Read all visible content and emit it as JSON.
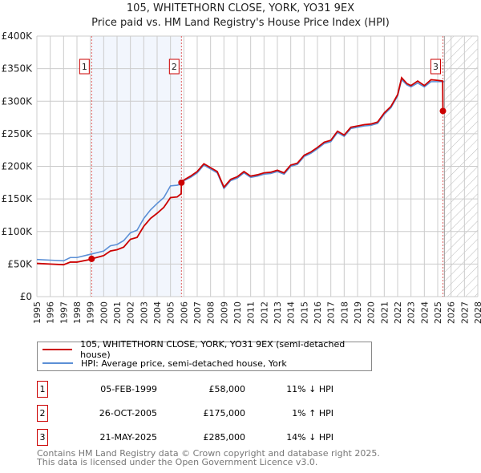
{
  "title": "105, WHITETHORN CLOSE, YORK, YO31 9EX",
  "subtitle": "Price paid vs. HM Land Registry's House Price Index (HPI)",
  "chart_data": {
    "type": "line",
    "title": "105, WHITETHORN CLOSE, YORK, YO31 9EX",
    "subtitle": "Price paid vs. HM Land Registry's House Price Index (HPI)",
    "xlim": [
      1995,
      2028
    ],
    "ylim": [
      0,
      400000
    ],
    "x_ticks": [
      "1995",
      "1996",
      "1997",
      "1998",
      "1999",
      "2000",
      "2001",
      "2002",
      "2003",
      "2004",
      "2005",
      "2006",
      "2007",
      "2008",
      "2009",
      "2010",
      "2011",
      "2012",
      "2013",
      "2014",
      "2015",
      "2016",
      "2017",
      "2018",
      "2019",
      "2020",
      "2021",
      "2022",
      "2023",
      "2024",
      "2025",
      "2026",
      "2027",
      "2028"
    ],
    "y_ticks": [
      {
        "v": 0,
        "label": "£0"
      },
      {
        "v": 50000,
        "label": "£50K"
      },
      {
        "v": 100000,
        "label": "£100K"
      },
      {
        "v": 150000,
        "label": "£150K"
      },
      {
        "v": 200000,
        "label": "£200K"
      },
      {
        "v": 250000,
        "label": "£250K"
      },
      {
        "v": 300000,
        "label": "£300K"
      },
      {
        "v": 350000,
        "label": "£350K"
      },
      {
        "v": 400000,
        "label": "£400K"
      }
    ],
    "grid": true,
    "shaded_range": [
      1999.1,
      2005.82
    ],
    "forecast_hatch_from": 2025.5,
    "series": [
      {
        "name": "105, WHITETHORN CLOSE, YORK, YO31 9EX (semi-detached house)",
        "color": "#cc0000",
        "x": [
          1995,
          1996,
          1997,
          1997.5,
          1998,
          1999,
          1999.1,
          2000,
          2000.5,
          2001,
          2001.5,
          2002,
          2002.5,
          2003,
          2003.5,
          2004,
          2004.5,
          2005,
          2005.5,
          2005.8,
          2005.82,
          2006,
          2006.5,
          2007,
          2007.5,
          2008,
          2008.5,
          2009,
          2009.5,
          2010,
          2010.5,
          2011,
          2011.5,
          2012,
          2012.5,
          2013,
          2013.5,
          2014,
          2014.5,
          2015,
          2015.5,
          2016,
          2016.5,
          2017,
          2017.5,
          2018,
          2018.5,
          2019,
          2019.5,
          2020,
          2020.5,
          2021,
          2021.5,
          2022,
          2022.3,
          2022.7,
          2023,
          2023.5,
          2024,
          2024.5,
          2025,
          2025.37,
          2025.39
        ],
        "y": [
          51000,
          50000,
          49000,
          53000,
          53000,
          57000,
          58000,
          63000,
          70000,
          72000,
          76000,
          88000,
          91000,
          108000,
          120000,
          128000,
          137000,
          152000,
          153000,
          158000,
          175000,
          179000,
          185000,
          192000,
          204000,
          198000,
          192000,
          168000,
          180000,
          184000,
          192000,
          185000,
          187000,
          190000,
          191000,
          194000,
          190000,
          202000,
          205000,
          217000,
          222000,
          229000,
          237000,
          240000,
          254000,
          248000,
          260000,
          262000,
          264000,
          265000,
          268000,
          282000,
          292000,
          310000,
          336000,
          327000,
          324000,
          331000,
          324000,
          333000,
          332000,
          331000,
          285000
        ]
      },
      {
        "name": "HPI: Average price, semi-detached house, York",
        "color": "#5b8fd6",
        "x": [
          1995,
          1996,
          1997,
          1997.5,
          1998,
          1999,
          2000,
          2000.5,
          2001,
          2001.5,
          2002,
          2002.5,
          2003,
          2003.5,
          2004,
          2004.5,
          2005,
          2005.5,
          2005.8,
          2006,
          2006.5,
          2007,
          2007.5,
          2008,
          2008.5,
          2009,
          2009.5,
          2010,
          2010.5,
          2011,
          2011.5,
          2012,
          2012.5,
          2013,
          2013.5,
          2014,
          2014.5,
          2015,
          2015.5,
          2016,
          2016.5,
          2017,
          2017.5,
          2018,
          2018.5,
          2019,
          2019.5,
          2020,
          2020.5,
          2021,
          2021.5,
          2022,
          2022.3,
          2022.7,
          2023,
          2023.5,
          2024,
          2024.5,
          2025,
          2025.5
        ],
        "y": [
          57000,
          56000,
          55000,
          60000,
          60000,
          65000,
          70000,
          78000,
          80000,
          86000,
          98000,
          102000,
          120000,
          133000,
          143000,
          152000,
          170000,
          171000,
          173000,
          178000,
          183000,
          190000,
          202000,
          196000,
          190000,
          166000,
          178000,
          182000,
          190000,
          183000,
          185000,
          188000,
          189000,
          192000,
          188000,
          200000,
          203000,
          215000,
          220000,
          227000,
          235000,
          238000,
          252000,
          246000,
          258000,
          260000,
          262000,
          263000,
          266000,
          280000,
          290000,
          308000,
          333000,
          325000,
          322000,
          328000,
          322000,
          330000,
          330000,
          330000
        ]
      }
    ],
    "sales": [
      {
        "label": "1",
        "x": 1999.1,
        "y": 58000
      },
      {
        "label": "2",
        "x": 2005.82,
        "y": 175000
      },
      {
        "label": "3",
        "x": 2025.39,
        "y": 285000
      }
    ]
  },
  "legend": {
    "items": [
      "105, WHITETHORN CLOSE, YORK, YO31 9EX (semi-detached house)",
      "HPI: Average price, semi-detached house, York"
    ]
  },
  "transactions": [
    {
      "num": "1",
      "date": "05-FEB-1999",
      "price": "£58,000",
      "hpi": "11% ↓ HPI"
    },
    {
      "num": "2",
      "date": "26-OCT-2005",
      "price": "£175,000",
      "hpi": "1% ↑ HPI"
    },
    {
      "num": "3",
      "date": "21-MAY-2025",
      "price": "£285,000",
      "hpi": "14% ↓ HPI"
    }
  ],
  "footer": {
    "line1": "Contains HM Land Registry data © Crown copyright and database right 2025.",
    "line2": "This data is licensed under the Open Government Licence v3.0."
  }
}
